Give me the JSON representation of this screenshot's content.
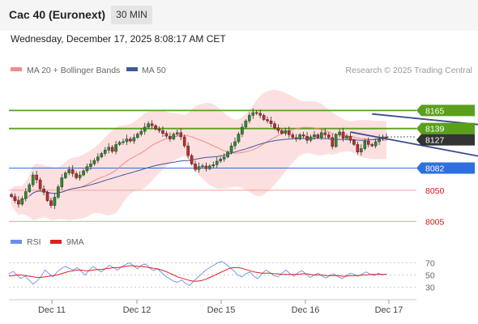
{
  "header": {
    "title": "Cac 40 (Euronext)",
    "timeframe": "30 MIN",
    "datetime": "Wednesday, December 17, 2025 8:08:17 AM CET"
  },
  "legend": {
    "ma20_label": "MA 20 + Bollinger Bands",
    "ma50_label": "MA 50",
    "source": "Research © 2025 Trading Central",
    "ma20_color": "#f28b8b",
    "ma50_color": "#3c5a9a"
  },
  "rsi_legend": {
    "rsi_label": "RSI",
    "ma9_label": "9MA",
    "rsi_color": "#6b8fe6",
    "ma9_color": "#e02020"
  },
  "chart_data": {
    "type": "candlestick",
    "x_tick_labels": [
      "Dec 11",
      "Dec 12",
      "Dec 15",
      "Dec 16",
      "Dec 17"
    ],
    "y_range": [
      7995,
      8190
    ],
    "levels": [
      {
        "value": 8165,
        "label": "8165",
        "kind": "resistance",
        "color": "#5aa01c"
      },
      {
        "value": 8139,
        "label": "8139",
        "kind": "resistance",
        "color": "#5aa01c"
      },
      {
        "value": 8127,
        "label": "8127",
        "kind": "last-price",
        "color": "#333333"
      },
      {
        "value": 8082,
        "label": "8082",
        "kind": "pivot",
        "color": "#2f6fe0"
      },
      {
        "value": 8050,
        "label": "8050",
        "kind": "support",
        "color": "#d01818"
      },
      {
        "value": 8005,
        "label": "8005",
        "kind": "support",
        "color": "#d01818"
      }
    ],
    "channel": {
      "upper": [
        {
          "t": 100,
          "v": 8160
        },
        {
          "t": 158,
          "v": 8130
        }
      ],
      "lower": [
        {
          "t": 94,
          "v": 8134
        },
        {
          "t": 143,
          "v": 8086
        }
      ]
    },
    "forecast_arrow": [
      {
        "t": 157,
        "v": 8128
      },
      {
        "t": 171,
        "v": 8150
      }
    ],
    "closes": [
      8041,
      8035,
      8030,
      8038,
      8048,
      8058,
      8072,
      8065,
      8052,
      8047,
      8035,
      8028,
      8040,
      8055,
      8068,
      8075,
      8080,
      8074,
      8068,
      8072,
      8078,
      8084,
      8088,
      8093,
      8098,
      8103,
      8108,
      8112,
      8106,
      8116,
      8119,
      8120,
      8124,
      8121,
      8126,
      8131,
      8135,
      8141,
      8146,
      8143,
      8138,
      8136,
      8132,
      8128,
      8124,
      8131,
      8133,
      8127,
      8114,
      8100,
      8088,
      8080,
      8084,
      8085,
      8081,
      8085,
      8087,
      8092,
      8095,
      8098,
      8105,
      8114,
      8120,
      8131,
      8141,
      8150,
      8158,
      8162,
      8161,
      8158,
      8152,
      8150,
      8146,
      8140,
      8136,
      8132,
      8136,
      8130,
      8126,
      8124,
      8130,
      8128,
      8122,
      8127,
      8130,
      8126,
      8133,
      8130,
      8126,
      8113,
      8130,
      8134,
      8125,
      8128,
      8122,
      8116,
      8105,
      8110,
      8121,
      8116,
      8114,
      8120,
      8124,
      8127,
      8126
    ],
    "rsi": {
      "y_ticks": [
        70,
        50,
        30
      ],
      "y_range": [
        15,
        85
      ],
      "rsi_values": [
        52,
        56,
        50,
        44,
        48,
        42,
        35,
        40,
        48,
        58,
        52,
        47,
        55,
        60,
        64,
        61,
        58,
        62,
        56,
        50,
        58,
        64,
        59,
        55,
        60,
        66,
        62,
        58,
        63,
        67,
        70,
        65,
        60,
        66,
        68,
        62,
        57,
        60,
        54,
        48,
        44,
        40,
        38,
        42,
        36,
        33,
        40,
        46,
        52,
        58,
        62,
        66,
        70,
        72,
        68,
        62,
        57,
        50,
        47,
        52,
        55,
        48,
        44,
        52,
        58,
        54,
        49,
        47,
        53,
        58,
        52,
        48,
        54,
        57,
        51,
        46,
        50,
        53,
        48,
        45,
        50,
        52,
        47,
        44,
        49,
        53,
        51,
        48,
        52,
        55,
        51,
        49,
        53,
        50,
        52
      ],
      "ma9_values": [
        48,
        49,
        50,
        50,
        49,
        48,
        47,
        46,
        46,
        47,
        48,
        49,
        50,
        52,
        54,
        56,
        57,
        58,
        58,
        57,
        57,
        58,
        59,
        59,
        60,
        61,
        62,
        62,
        63,
        64,
        65,
        65,
        64,
        64,
        63,
        62,
        61,
        60,
        58,
        56,
        53,
        50,
        47,
        45,
        43,
        41,
        40,
        40,
        41,
        43,
        46,
        49,
        52,
        55,
        58,
        61,
        62,
        62,
        61,
        59,
        57,
        55,
        54,
        53,
        53,
        53,
        52,
        52,
        51,
        51,
        51,
        51,
        51,
        52,
        52,
        51,
        50,
        50,
        50,
        49,
        49,
        49,
        49,
        48,
        48,
        49,
        49,
        49,
        50,
        50,
        51,
        51,
        51,
        51,
        51
      ]
    }
  }
}
